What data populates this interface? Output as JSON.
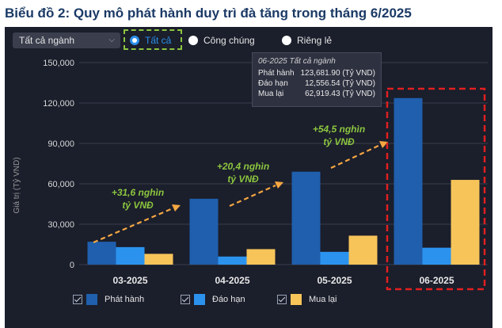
{
  "page": {
    "title": "Biểu đồ 2: Quy mô phát hành duy trì đà tăng trong tháng 6/2025"
  },
  "controls": {
    "segment_select": "Tất cả ngành",
    "radio": [
      {
        "label": "Tất cả",
        "selected": true
      },
      {
        "label": "Công chúng",
        "selected": false
      },
      {
        "label": "Riêng lẻ",
        "selected": false
      }
    ]
  },
  "tooltip": {
    "title": "06-2025 Tất cả ngành",
    "rows": [
      {
        "label": "Phát hành",
        "value": "123,681.90 (Tỷ VND)"
      },
      {
        "label": "Đáo hạn",
        "value": "12,556.54 (Tỷ VND)"
      },
      {
        "label": "Mua lại",
        "value": "62,919.43 (Tỷ VND)"
      }
    ]
  },
  "annotations": [
    {
      "line1": "+31,6 nghìn",
      "line2": "tỷ VNĐ"
    },
    {
      "line1": "+20,4 nghìn",
      "line2": "tỷ VNĐ"
    },
    {
      "line1": "+54,5 nghìn",
      "line2": "tỷ VNĐ"
    }
  ],
  "chart_data": {
    "type": "bar",
    "title": "Biểu đồ 2: Quy mô phát hành duy trì đà tăng trong tháng 6/2025",
    "ylabel": "Giá trị (Tỷ VND)",
    "xlabel": "",
    "categories": [
      "03-2025",
      "04-2025",
      "05-2025",
      "06-2025"
    ],
    "ylim": [
      0,
      150000
    ],
    "yticks": [
      0,
      30000,
      60000,
      90000,
      120000,
      150000
    ],
    "ytick_labels": [
      "0",
      "30,000",
      "60,000",
      "90,000",
      "120,000",
      "150,000"
    ],
    "grid": true,
    "legend_position": "bottom",
    "series": [
      {
        "name": "Phát hành",
        "color": "#1f5fad",
        "values": [
          17000,
          48900,
          69000,
          123681.9
        ]
      },
      {
        "name": "Đáo hạn",
        "color": "#2b93ee",
        "values": [
          13000,
          6000,
          9500,
          12556.54
        ]
      },
      {
        "name": "Mua lại",
        "color": "#f7c45a",
        "values": [
          8000,
          11500,
          21500,
          62919.43
        ]
      }
    ],
    "highlight_category": "06-2025"
  }
}
